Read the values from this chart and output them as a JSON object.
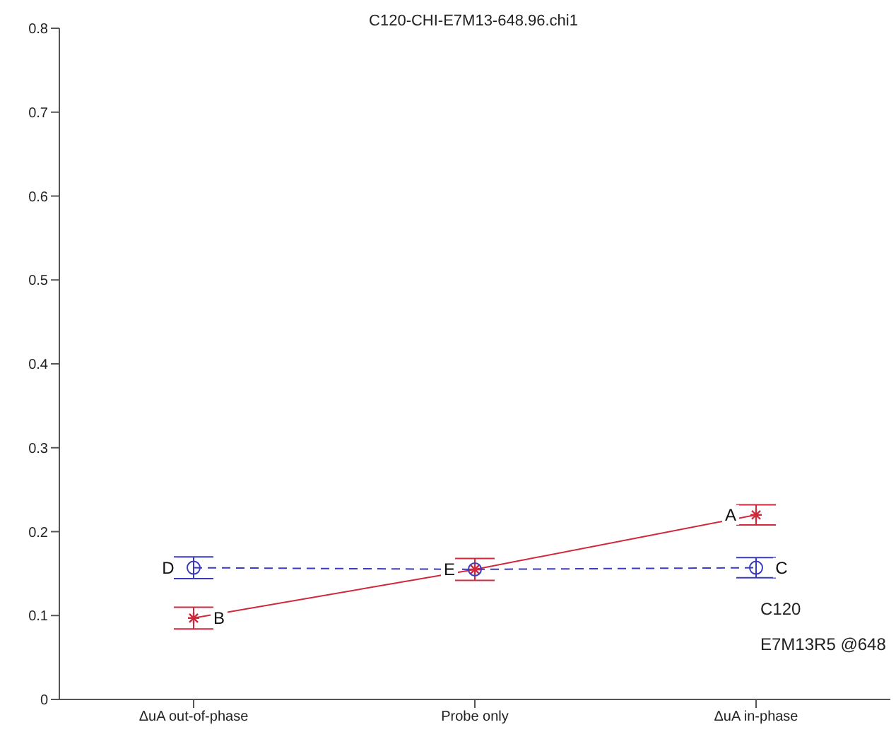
{
  "chart_data": {
    "type": "line",
    "title": "C120-CHI-E7M13-648.96.chi1",
    "categories": [
      "ΔuA out-of-phase",
      "Probe only",
      "ΔuA in-phase"
    ],
    "series": [
      {
        "color": "#d0283c",
        "values": [
          0.097,
          0.155,
          0.22
        ],
        "errors": [
          0.013,
          0.013,
          0.012
        ],
        "marker": "cross",
        "line_style": "solid"
      },
      {
        "color": "#3a3ac0",
        "values": [
          0.157,
          0.155,
          0.157
        ],
        "errors": [
          0.013,
          null,
          0.012
        ],
        "marker": "circle",
        "line_style": "dashed"
      }
    ],
    "ylim": [
      0,
      0.8
    ],
    "yticks": [
      0,
      0.1,
      0.2,
      0.3,
      0.4,
      0.5,
      0.6,
      0.7,
      0.8
    ],
    "grid": false,
    "legend": false,
    "annotations": [
      {
        "text": "A",
        "x": "ΔuA in-phase",
        "y": 0.22
      },
      {
        "text": "B",
        "x": "ΔuA out-of-phase",
        "y": 0.097
      },
      {
        "text": "C",
        "x": "ΔuA in-phase",
        "y": 0.157
      },
      {
        "text": "D",
        "x": "ΔuA out-of-phase",
        "y": 0.157
      },
      {
        "text": "E",
        "x": "Probe only",
        "y": 0.155
      },
      "C120",
      "E7M13R5 @648"
    ]
  }
}
